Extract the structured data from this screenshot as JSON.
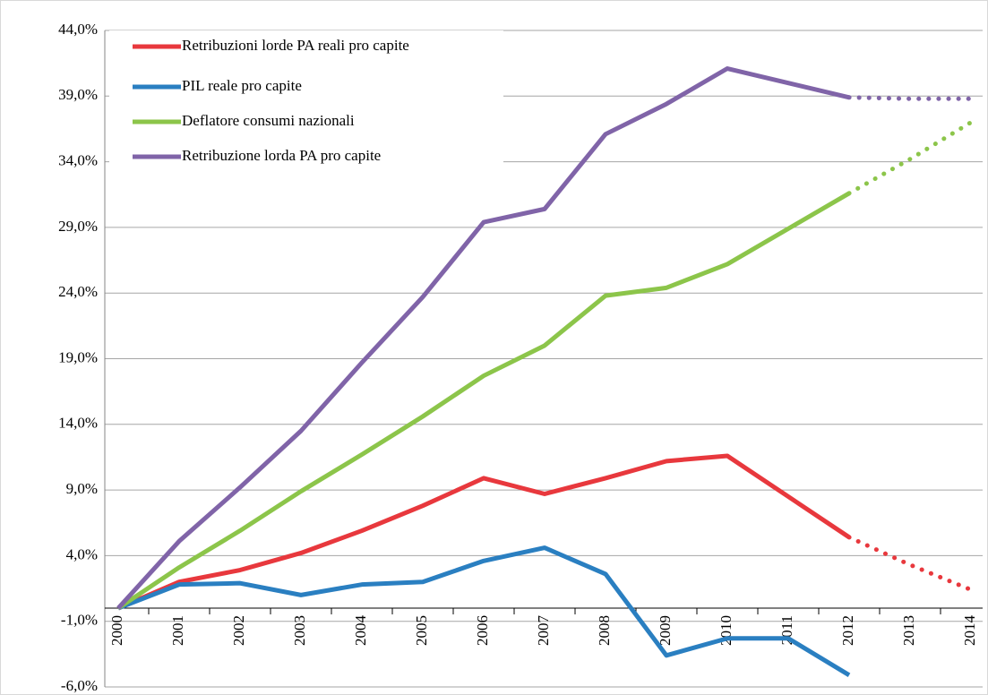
{
  "chart_data": {
    "type": "line",
    "categories": [
      "2000",
      "2001",
      "2002",
      "2003",
      "2004",
      "2005",
      "2006",
      "2007",
      "2008",
      "2009",
      "2010",
      "2011",
      "2012",
      "2013",
      "2014"
    ],
    "series": [
      {
        "name": "Retribuzioni lorde PA reali pro capite",
        "color": "#e8383d",
        "dotted_from": "2012",
        "values": [
          0,
          2.0,
          2.9,
          4.2,
          5.9,
          7.8,
          9.9,
          8.7,
          9.9,
          11.2,
          11.6,
          8.5,
          5.4,
          3.3,
          1.4
        ]
      },
      {
        "name": "PIL reale pro capite",
        "color": "#2a7fc1",
        "dotted_from": "2012",
        "values": [
          0,
          1.8,
          1.9,
          1.0,
          1.8,
          2.0,
          3.6,
          4.6,
          2.6,
          -3.6,
          -2.3,
          -2.3,
          -5.1,
          null,
          null
        ]
      },
      {
        "name": "Deflatore consumi nazionali",
        "color": "#8cc54a",
        "dotted_from": "2012",
        "values": [
          0,
          3.1,
          5.9,
          8.9,
          11.7,
          14.6,
          17.7,
          20.0,
          23.8,
          24.4,
          26.2,
          28.9,
          31.6,
          34.2,
          37.0
        ]
      },
      {
        "name": "Retribuzione lorda PA pro capite",
        "color": "#8064a8",
        "dotted_from": "2012",
        "values": [
          0,
          5.1,
          9.2,
          13.5,
          18.7,
          23.7,
          29.4,
          30.4,
          36.1,
          38.4,
          41.1,
          40.0,
          38.9,
          38.8,
          38.8
        ]
      }
    ],
    "ylim": [
      -6,
      44
    ],
    "yticks": [
      {
        "value": -6,
        "label": "-6,0%"
      },
      {
        "value": -1,
        "label": "-1,0%"
      },
      {
        "value": 4,
        "label": "4,0%"
      },
      {
        "value": 9,
        "label": "9,0%"
      },
      {
        "value": 14,
        "label": "14,0%"
      },
      {
        "value": 19,
        "label": "19,0%"
      },
      {
        "value": 24,
        "label": "24,0%"
      },
      {
        "value": 29,
        "label": "29,0%"
      },
      {
        "value": 34,
        "label": "34,0%"
      },
      {
        "value": 39,
        "label": "39,0%"
      },
      {
        "value": 44,
        "label": "44,0%"
      }
    ],
    "grid": true,
    "legend": "top-left"
  }
}
